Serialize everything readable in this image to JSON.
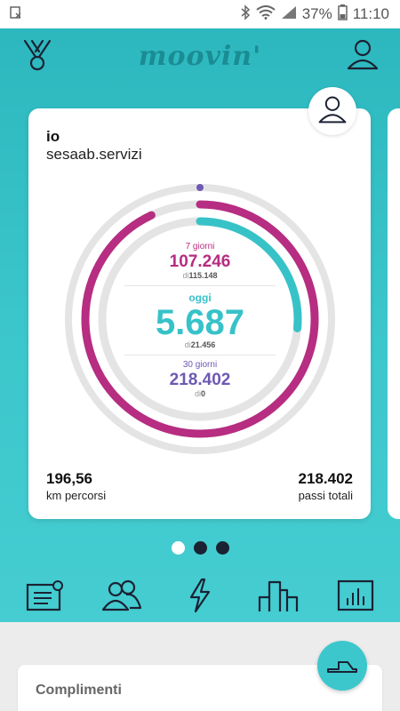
{
  "status_bar": {
    "battery": "37%",
    "time": "11:10"
  },
  "header": {
    "logo": "moovin'"
  },
  "card": {
    "name": "io",
    "subtitle": "sesaab.servizi",
    "week": {
      "label": "7 giorni",
      "value": "107.246",
      "of_prefix": "di",
      "of_value": "115.148",
      "progress": 0.93
    },
    "today": {
      "label": "oggi",
      "value": "5.687",
      "of_prefix": "di",
      "of_value": "21.456",
      "progress": 0.265
    },
    "month": {
      "label": "30 giorni",
      "value": "218.402",
      "of_prefix": "di",
      "of_value": "0",
      "progress": 0
    },
    "km_value": "196,56",
    "km_label": "km percorsi",
    "steps_value": "218.402",
    "steps_label": "passi totali"
  },
  "pager": {
    "count": 3,
    "active": 0
  },
  "nav": {
    "items": [
      "news-icon",
      "people-icon",
      "lightning-icon",
      "buildings-icon",
      "chart-icon"
    ]
  },
  "bottom": {
    "panel_title": "Complimenti"
  },
  "colors": {
    "teal": "#37c2c8",
    "magenta": "#b62d81",
    "purple": "#6e59b3",
    "dark": "#1b2233"
  }
}
